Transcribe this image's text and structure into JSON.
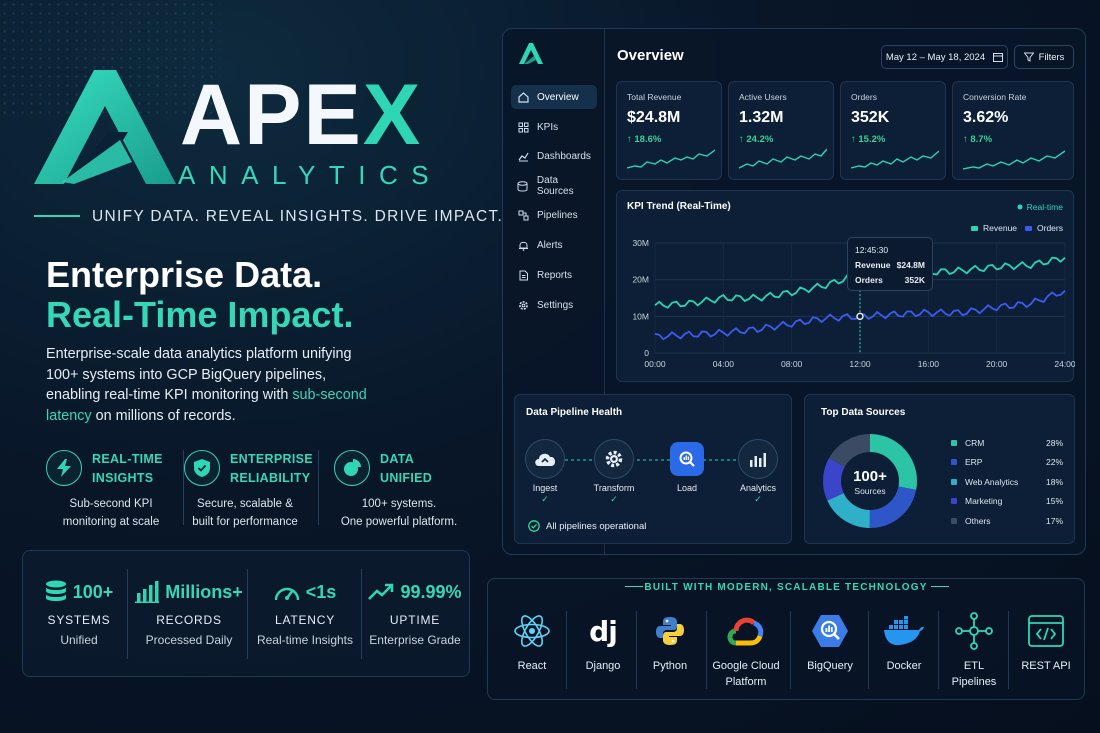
{
  "brand": {
    "wordmark_left": "APE",
    "wordmark_right": "X",
    "subtitle": "ANALYTICS",
    "tagline": "UNIFY DATA. REVEAL INSIGHTS. DRIVE IMPACT."
  },
  "hero": {
    "headline_1": "Enterprise Data.",
    "headline_2": "Real-Time Impact.",
    "desc_1": "Enterprise-scale data analytics platform unifying 100+ systems into GCP BigQuery pipelines, enabling real-time KPI monitoring with ",
    "desc_highlight": "sub-second latency",
    "desc_2": " on millions of records."
  },
  "features": [
    {
      "icon": "lightning-icon",
      "title_1": "REAL-TIME",
      "title_2": "INSIGHTS",
      "desc_1": "Sub-second KPI",
      "desc_2": "monitoring at scale"
    },
    {
      "icon": "shield-icon",
      "title_1": "ENTERPRISE",
      "title_2": "RELIABILITY",
      "desc_1": "Secure, scalable &",
      "desc_2": "built for performance"
    },
    {
      "icon": "pie-chart-icon",
      "title_1": "DATA",
      "title_2": "UNIFIED",
      "desc_1": "100+ systems.",
      "desc_2": "One powerful platform."
    }
  ],
  "stats": [
    {
      "icon": "database-icon",
      "value": "100+",
      "label": "SYSTEMS",
      "sub": "Unified"
    },
    {
      "icon": "bar-chart-icon",
      "value": "Millions+",
      "label": "RECORDS",
      "sub": "Processed Daily"
    },
    {
      "icon": "gauge-icon",
      "value": "<1s",
      "label": "LATENCY",
      "sub": "Real-time Insights"
    },
    {
      "icon": "trend-up-icon",
      "value": "99.99%",
      "label": "UPTIME",
      "sub": "Enterprise Grade"
    }
  ],
  "dashboard": {
    "title": "Overview",
    "date_range": "May 12 – May 18, 2024",
    "filters_label": "Filters",
    "nav": [
      {
        "icon": "home-icon",
        "label": "Overview",
        "active": true
      },
      {
        "icon": "grid-icon",
        "label": "KPIs"
      },
      {
        "icon": "line-chart-icon",
        "label": "Dashboards"
      },
      {
        "icon": "database-icon",
        "label": "Data Sources"
      },
      {
        "icon": "pipeline-icon",
        "label": "Pipelines"
      },
      {
        "icon": "bell-icon",
        "label": "Alerts"
      },
      {
        "icon": "document-icon",
        "label": "Reports"
      },
      {
        "icon": "gear-icon",
        "label": "Settings"
      }
    ],
    "kpis": [
      {
        "label": "Total Revenue",
        "value": "$24.8M",
        "delta": "↑ 18.6%"
      },
      {
        "label": "Active Users",
        "value": "1.32M",
        "delta": "↑ 24.2%"
      },
      {
        "label": "Orders",
        "value": "352K",
        "delta": "↑ 15.2%"
      },
      {
        "label": "Conversion Rate",
        "value": "3.62%",
        "delta": "↑ 8.7%"
      }
    ],
    "trend": {
      "title": "KPI Trend (Real-Time)",
      "realtime_label": "Real-time",
      "legend_revenue": "Revenue",
      "legend_orders": "Orders",
      "tooltip": {
        "time": "12:45:30",
        "revenue_label": "Revenue",
        "revenue_value": "$24.8M",
        "orders_label": "Orders",
        "orders_value": "352K"
      }
    },
    "pipeline": {
      "title": "Data Pipeline Health",
      "steps": [
        {
          "icon": "cloud-upload-icon",
          "label": "Ingest"
        },
        {
          "icon": "gear-icon",
          "label": "Transform"
        },
        {
          "icon": "bigquery-icon",
          "label": "Load"
        },
        {
          "icon": "bar-chart-icon",
          "label": "Analytics"
        }
      ],
      "check": "✓",
      "status": "All pipelines operational"
    },
    "sources": {
      "title": "Top Data Sources",
      "center_value": "100+",
      "center_label": "Sources",
      "items": [
        {
          "label": "CRM",
          "pct": "28%",
          "value": 28,
          "color": "#2bc4a6"
        },
        {
          "label": "ERP",
          "pct": "22%",
          "value": 22,
          "color": "#2f56c8"
        },
        {
          "label": "Web Analytics",
          "pct": "18%",
          "value": 18,
          "color": "#2fb0c8"
        },
        {
          "label": "Marketing",
          "pct": "15%",
          "value": 15,
          "color": "#3c44c9"
        },
        {
          "label": "Others",
          "pct": "17%",
          "value": 17,
          "color": "#3a4b63"
        }
      ]
    }
  },
  "chart_data": {
    "type": "line",
    "title": "KPI Trend (Real-Time)",
    "xlabel": "",
    "ylabel": "",
    "x_ticks": [
      "00:00",
      "04:00",
      "08:00",
      "12:00",
      "16:00",
      "20:00",
      "24:00"
    ],
    "y_ticks": [
      "0",
      "10M",
      "20M",
      "30M"
    ],
    "ylim": [
      0,
      30
    ],
    "x": [
      0,
      2,
      4,
      6,
      8,
      10,
      12,
      14,
      16,
      18,
      20,
      22,
      24
    ],
    "series": [
      {
        "name": "Revenue",
        "color": "#2bd4b0",
        "values": [
          13,
          13.5,
          15,
          15,
          16.5,
          18.5,
          21.5,
          21,
          22,
          22.5,
          23.5,
          24,
          26
        ]
      },
      {
        "name": "Orders",
        "color": "#3e5bf0",
        "values": [
          4.5,
          5,
          5.5,
          6.5,
          8,
          9.5,
          10,
          10.5,
          11,
          11,
          12.5,
          13.5,
          17
        ]
      }
    ],
    "legend": "top-right",
    "grid": true
  },
  "tech": {
    "title": "BUILT WITH MODERN, SCALABLE TECHNOLOGY",
    "items": [
      {
        "icon": "react-icon",
        "label_1": "React",
        "label_2": ""
      },
      {
        "icon": "django-icon",
        "label_1": "Django",
        "label_2": ""
      },
      {
        "icon": "python-icon",
        "label_1": "Python",
        "label_2": ""
      },
      {
        "icon": "google-cloud-icon",
        "label_1": "Google Cloud",
        "label_2": "Platform"
      },
      {
        "icon": "bigquery-icon",
        "label_1": "BigQuery",
        "label_2": ""
      },
      {
        "icon": "docker-icon",
        "label_1": "Docker",
        "label_2": ""
      },
      {
        "icon": "etl-icon",
        "label_1": "ETL",
        "label_2": "Pipelines"
      },
      {
        "icon": "api-icon",
        "label_1": "REST API",
        "label_2": ""
      }
    ],
    "django_glyph": "dj"
  }
}
